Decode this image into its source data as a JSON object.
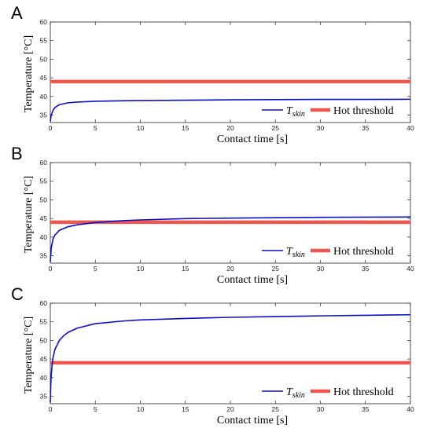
{
  "chart_data": [
    {
      "panel": "A",
      "type": "line",
      "xlabel": "Contact time [s]",
      "ylabel": "Temperature [°C]",
      "xlim": [
        0,
        40
      ],
      "ylim": [
        33,
        60
      ],
      "xticks": [
        0,
        5,
        10,
        15,
        20,
        25,
        30,
        35,
        40
      ],
      "yticks": [
        35,
        40,
        45,
        50,
        55,
        60
      ],
      "legend": "bottom-right",
      "series": [
        {
          "name": "T_skin",
          "color": "#0a10c8",
          "x": [
            0,
            0.1,
            0.3,
            0.5,
            1,
            2,
            3,
            5,
            8,
            10,
            15,
            20,
            25,
            30,
            35,
            40
          ],
          "y": [
            33.3,
            35.0,
            36.3,
            37.0,
            37.8,
            38.3,
            38.5,
            38.7,
            38.85,
            38.9,
            39.0,
            39.1,
            39.15,
            39.2,
            39.2,
            39.25
          ]
        },
        {
          "name": "Hot threshold",
          "color": "#f0564e",
          "x": [
            0,
            40
          ],
          "y": [
            44,
            44
          ]
        }
      ]
    },
    {
      "panel": "B",
      "type": "line",
      "xlabel": "Contact time [s]",
      "ylabel": "Temperature [°C]",
      "xlim": [
        0,
        40
      ],
      "ylim": [
        33,
        60
      ],
      "xticks": [
        0,
        5,
        10,
        15,
        20,
        25,
        30,
        35,
        40
      ],
      "yticks": [
        35,
        40,
        45,
        50,
        55,
        60
      ],
      "legend": "bottom-right",
      "series": [
        {
          "name": "T_skin",
          "color": "#0a10c8",
          "x": [
            0,
            0.1,
            0.3,
            0.5,
            1,
            2,
            3,
            5,
            8,
            10,
            15,
            20,
            25,
            30,
            35,
            40
          ],
          "y": [
            33.3,
            37.0,
            39.5,
            40.5,
            41.8,
            42.8,
            43.3,
            43.9,
            44.4,
            44.6,
            44.95,
            45.1,
            45.2,
            45.3,
            45.35,
            45.4
          ]
        },
        {
          "name": "Hot threshold",
          "color": "#f0564e",
          "x": [
            0,
            40
          ],
          "y": [
            44,
            44
          ]
        }
      ]
    },
    {
      "panel": "C",
      "type": "line",
      "xlabel": "Contact time [s]",
      "ylabel": "Temperature [°C]",
      "xlim": [
        0,
        40
      ],
      "ylim": [
        33,
        60
      ],
      "xticks": [
        0,
        5,
        10,
        15,
        20,
        25,
        30,
        35,
        40
      ],
      "yticks": [
        35,
        40,
        45,
        50,
        55,
        60
      ],
      "legend": "bottom-right",
      "series": [
        {
          "name": "T_skin",
          "color": "#0a10c8",
          "x": [
            0,
            0.05,
            0.1,
            0.2,
            0.3,
            0.5,
            1,
            1.5,
            2,
            3,
            5,
            8,
            10,
            15,
            20,
            25,
            30,
            35,
            40
          ],
          "y": [
            33.3,
            38.0,
            40.5,
            43.5,
            45.3,
            47.5,
            50.0,
            51.3,
            52.2,
            53.3,
            54.5,
            55.2,
            55.5,
            55.9,
            56.2,
            56.4,
            56.6,
            56.75,
            56.9
          ]
        },
        {
          "name": "Hot threshold",
          "color": "#f0564e",
          "x": [
            0,
            40
          ],
          "y": [
            44,
            44
          ]
        }
      ]
    }
  ]
}
